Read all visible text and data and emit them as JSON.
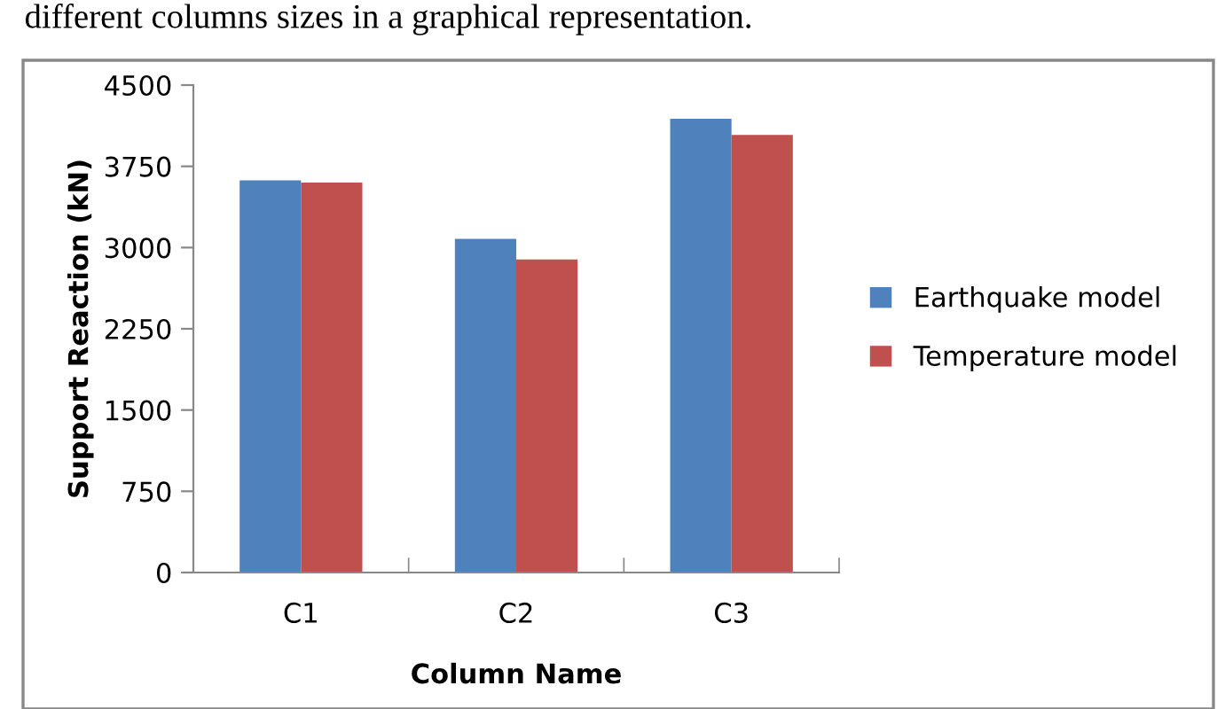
{
  "chart_data": {
    "type": "bar",
    "xlabel": "Column Name",
    "ylabel": "Support Reaction (kN)",
    "annotations": [
      "different columns sizes in a graphical representation."
    ],
    "categories": [
      "C1",
      "C2",
      "C3"
    ],
    "series": [
      {
        "name": "Earthquake model",
        "color": "#4f81bd",
        "values": [
          3620,
          3080,
          4190
        ]
      },
      {
        "name": "Temperature model",
        "color": "#c0504d",
        "values": [
          3600,
          2890,
          4040
        ]
      }
    ],
    "ylim": [
      0,
      4500
    ],
    "yticks": [
      0,
      750,
      1500,
      2250,
      3000,
      3750,
      4500
    ],
    "grid": false,
    "legend": "right"
  }
}
